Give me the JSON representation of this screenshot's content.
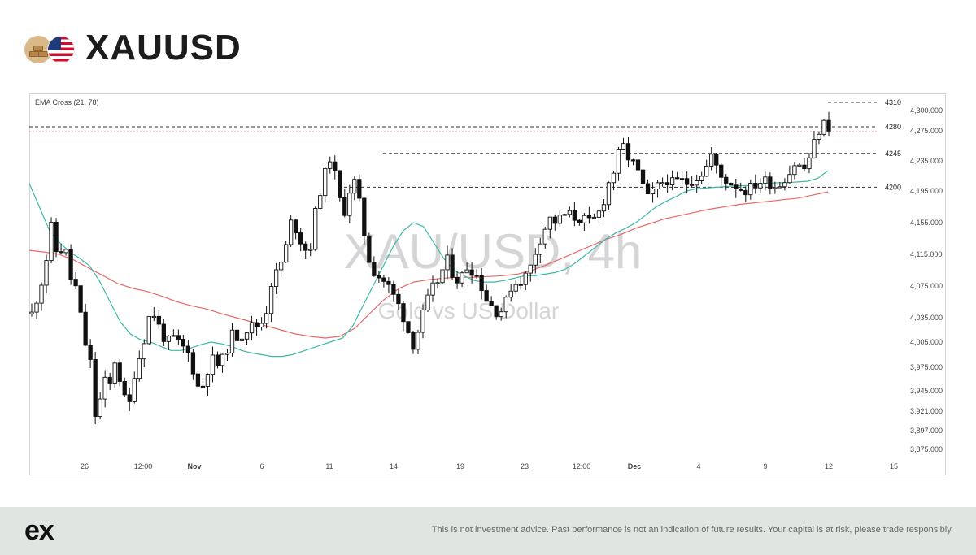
{
  "header": {
    "title": "XAUUSD",
    "icons": [
      "gold-bars-icon",
      "us-flag-icon"
    ]
  },
  "footer": {
    "logo": "ex",
    "disclaimer": "This is not investment advice. Past performance is not an indication of future results. Your capital is at risk, please trade responsibly."
  },
  "chart_data": {
    "type": "candlestick",
    "indicator_label": "EMA Cross (21, 78)",
    "watermark": {
      "symbol": "XAU/USD, 4h",
      "name": "Gold vs US Dollar"
    },
    "y_ticks": [
      "4,300.000",
      "4,275.000",
      "4,235.000",
      "4,195.000",
      "4,155.000",
      "4,115.000",
      "4,075.000",
      "4,035.000",
      "4,005.000",
      "3,975.000",
      "3,945.000",
      "3,921.000",
      "3,897.000",
      "3,875.000"
    ],
    "x_ticks": [
      "26",
      "12:00",
      "Nov",
      "6",
      "11",
      "14",
      "19",
      "23",
      "12:00",
      "Dec",
      "4",
      "9",
      "12",
      "15"
    ],
    "levels": [
      {
        "label": "4310",
        "value": 4310
      },
      {
        "label": "4280",
        "value": 4280
      },
      {
        "label": "4245",
        "value": 4245
      },
      {
        "label": "4200",
        "value": 4200
      }
    ],
    "price_path": [
      4040,
      4065,
      4095,
      4150,
      4110,
      4130,
      4085,
      4070,
      4010,
      3985,
      3900,
      3960,
      3950,
      3990,
      3940,
      3925,
      3975,
      3995,
      4035,
      4040,
      4015,
      4005,
      4010,
      4000,
      3995,
      3970,
      3940,
      3970,
      3985,
      3975,
      3995,
      4015,
      4010,
      4020,
      4025,
      4025,
      4035,
      4080,
      4095,
      4115,
      4155,
      4145,
      4120,
      4125,
      4180,
      4210,
      4240,
      4210,
      4160,
      4195,
      4210,
      4155,
      4110,
      4090,
      4085,
      4075,
      4060,
      4045,
      4020,
      4000,
      4030,
      4055,
      4075,
      4085,
      4110,
      4090,
      4080,
      4100,
      4095,
      4085,
      4060,
      4050,
      4040,
      4050,
      4075,
      4080,
      4085,
      4100,
      4125,
      4145,
      4160,
      4155,
      4165,
      4165,
      4160,
      4160,
      4155,
      4160,
      4175,
      4205,
      4225,
      4260,
      4240,
      4230,
      4210,
      4185,
      4195,
      4205,
      4210,
      4205,
      4210,
      4205,
      4210,
      4215,
      4225,
      4245,
      4215,
      4210,
      4205,
      4200,
      4195,
      4200,
      4205,
      4210,
      4205,
      4200,
      4210,
      4220,
      4235,
      4220,
      4240,
      4265,
      4285,
      4280
    ],
    "ema21": [
      4205,
      4175,
      4145,
      4130,
      4118,
      4110,
      4100,
      4080,
      4055,
      4030,
      4015,
      4008,
      4005,
      4000,
      3995,
      3995,
      3998,
      4002,
      4005,
      4003,
      4000,
      3995,
      3992,
      3990,
      3988,
      3988,
      3990,
      3994,
      3998,
      4002,
      4006,
      4010,
      4025,
      4050,
      4075,
      4100,
      4125,
      4145,
      4155,
      4150,
      4130,
      4110,
      4095,
      4088,
      4082,
      4080,
      4080,
      4082,
      4085,
      4088,
      4088,
      4090,
      4092,
      4096,
      4104,
      4114,
      4124,
      4134,
      4142,
      4148,
      4155,
      4165,
      4175,
      4182,
      4188,
      4195,
      4198,
      4199,
      4200,
      4201,
      4202,
      4202,
      4203,
      4205,
      4206,
      4206,
      4207,
      4208,
      4212,
      4222
    ],
    "ema78": [
      4120,
      4118,
      4115,
      4108,
      4098,
      4088,
      4078,
      4072,
      4068,
      4062,
      4055,
      4050,
      4046,
      4040,
      4035,
      4030,
      4025,
      4020,
      4015,
      4012,
      4010,
      4012,
      4022,
      4040,
      4058,
      4072,
      4080,
      4083,
      4085,
      4086,
      4086,
      4087,
      4088,
      4090,
      4095,
      4102,
      4110,
      4118,
      4126,
      4134,
      4140,
      4148,
      4154,
      4160,
      4164,
      4168,
      4172,
      4175,
      4178,
      4180,
      4182,
      4184,
      4186,
      4190,
      4194
    ]
  }
}
